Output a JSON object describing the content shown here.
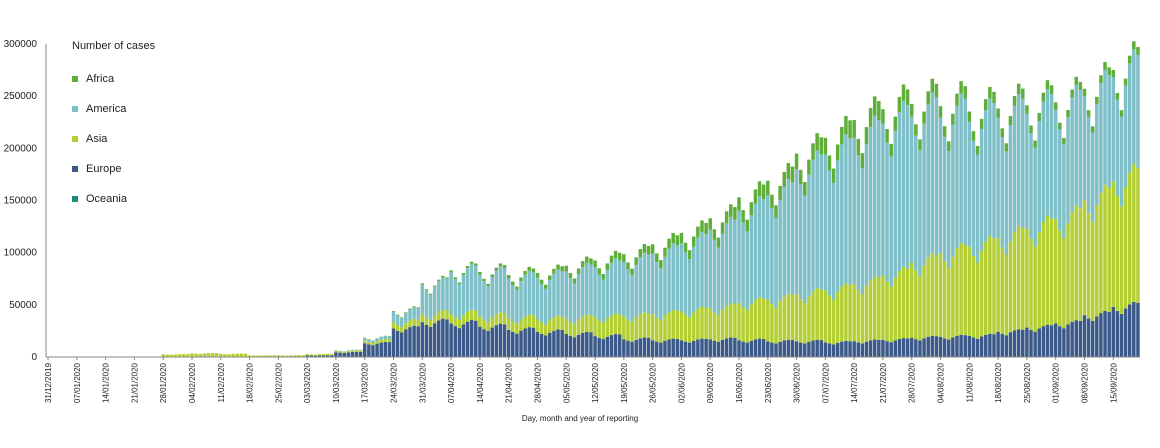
{
  "chart_data": {
    "type": "bar",
    "stacked": true,
    "title": "",
    "xlabel": "Day, month and year of reporting",
    "ylabel": "",
    "ylim": [
      0,
      300000
    ],
    "yticks": [
      "0",
      "50000",
      "100000",
      "150000",
      "200000",
      "250000",
      "300000"
    ],
    "xtick_labels": [
      "31/12/2019",
      "07/01/2020",
      "14/01/2020",
      "21/01/2020",
      "28/01/2020",
      "04/02/2020",
      "11/02/2020",
      "18/02/2020",
      "25/02/2020",
      "03/03/2020",
      "10/03/2020",
      "17/03/2020",
      "24/03/2020",
      "31/03/2020",
      "07/04/2020",
      "14/04/2020",
      "21/04/2020",
      "28/04/2020",
      "05/05/2020",
      "12/05/2020",
      "19/05/2020",
      "26/05/2020",
      "02/06/2020",
      "09/06/2020",
      "16/06/2020",
      "23/06/2020",
      "30/06/2020",
      "07/07/2020",
      "14/07/2020",
      "21/07/2020",
      "28/07/2020",
      "04/08/2020",
      "11/08/2020",
      "18/08/2020",
      "25/08/2020",
      "01/09/2020",
      "08/09/2020",
      "15/09/2020"
    ],
    "legend_title": "Number of cases",
    "legend_position": "top-left",
    "grid": false,
    "series_order_bottom_to_top": [
      "Oceania",
      "Europe",
      "Asia",
      "America",
      "Africa"
    ],
    "weekly_series": [
      {
        "name": "Oceania",
        "color": "#1a8a7a",
        "values": [
          0,
          0,
          0,
          0,
          0,
          0,
          0,
          0,
          0,
          0,
          50,
          200,
          300,
          400,
          200,
          50,
          20,
          20,
          10,
          10,
          20,
          20,
          20,
          20,
          20,
          20,
          20,
          30,
          200,
          500,
          500,
          400,
          300,
          200,
          200,
          100,
          100,
          60
        ]
      },
      {
        "name": "Europe",
        "color": "#3b5a8a",
        "values": [
          0,
          0,
          0,
          0,
          0,
          0,
          0,
          0,
          400,
          1500,
          4500,
          13000,
          27000,
          33000,
          32000,
          29000,
          26000,
          24000,
          22000,
          20000,
          17000,
          16000,
          16000,
          17000,
          16000,
          15000,
          15000,
          14000,
          15000,
          16000,
          18000,
          19000,
          20000,
          24000,
          28000,
          32000,
          40000,
          48000
        ]
      },
      {
        "name": "Asia",
        "color": "#b4cf33",
        "values": [
          0,
          0,
          0,
          200,
          2500,
          3500,
          3000,
          1500,
          1200,
          1300,
          1300,
          2500,
          6000,
          8000,
          9000,
          10000,
          11000,
          12000,
          15000,
          18000,
          22000,
          25000,
          28000,
          30000,
          36000,
          40000,
          45000,
          50000,
          55000,
          62000,
          72000,
          80000,
          85000,
          90000,
          95000,
          100000,
          110000,
          120000
        ]
      },
      {
        "name": "America",
        "color": "#7ebfc8",
        "values": [
          0,
          0,
          0,
          0,
          0,
          0,
          0,
          0,
          0,
          0,
          500,
          2500,
          10000,
          28000,
          40000,
          40000,
          38000,
          40000,
          45000,
          48000,
          52000,
          58000,
          65000,
          75000,
          88000,
          100000,
          120000,
          130000,
          140000,
          145000,
          140000,
          130000,
          120000,
          115000,
          110000,
          105000,
          100000,
          100000
        ]
      },
      {
        "name": "Africa",
        "color": "#5fae3a",
        "values": [
          0,
          0,
          0,
          0,
          0,
          0,
          0,
          0,
          0,
          0,
          100,
          300,
          800,
          1200,
          1800,
          2500,
          3500,
          4500,
          5500,
          6500,
          7500,
          9000,
          10000,
          11000,
          13000,
          14000,
          15000,
          16000,
          17000,
          14000,
          12000,
          11000,
          10000,
          9000,
          8000,
          7000,
          7000,
          7000
        ]
      }
    ]
  },
  "legend": {
    "title": "Number of cases",
    "items": [
      {
        "label": "Africa",
        "color": "#5fae3a"
      },
      {
        "label": "America",
        "color": "#7ebfc8"
      },
      {
        "label": "Asia",
        "color": "#b4cf33"
      },
      {
        "label": "Europe",
        "color": "#3b5a8a"
      },
      {
        "label": "Oceania",
        "color": "#1a8a7a"
      }
    ]
  }
}
